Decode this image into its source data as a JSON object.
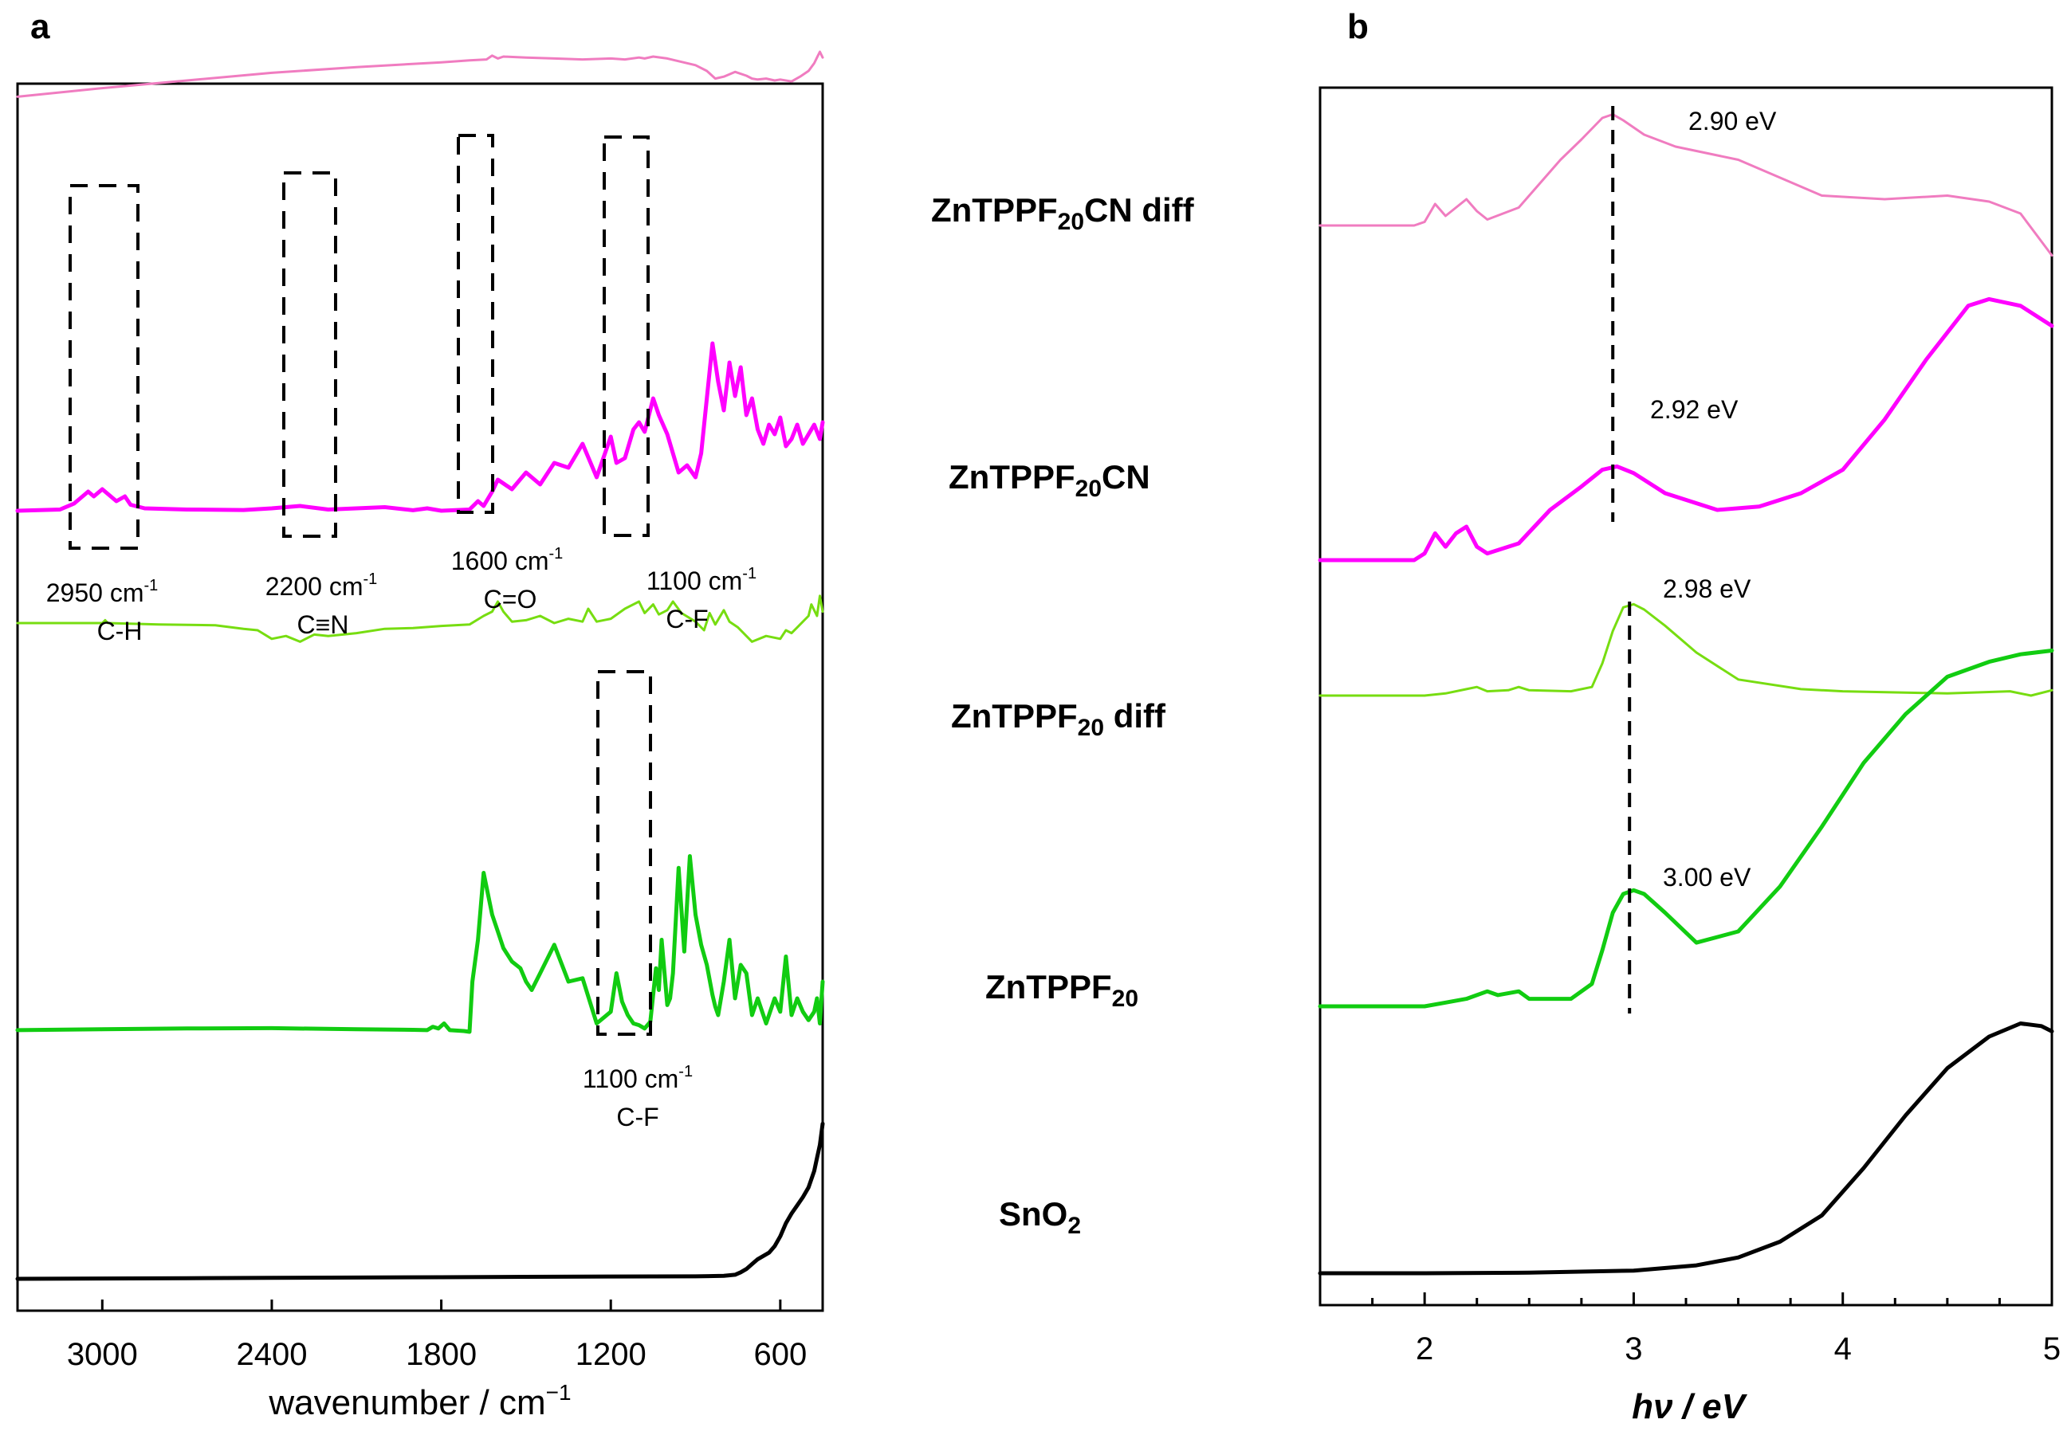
{
  "panels": {
    "a": "a",
    "b": "b"
  },
  "colors": {
    "pink": "#f07cc0",
    "magenta": "#ff00ff",
    "lightgreen": "#77dd11",
    "green": "#11cc11",
    "black": "#000000"
  },
  "chart_data": [
    {
      "type": "line",
      "panel": "a",
      "title": "",
      "xlabel": "wavenumber / cm",
      "xlabel_sup": "−1",
      "ylabel": "",
      "xlim": [
        3300,
        450
      ],
      "xticks": [
        3000,
        2400,
        1800,
        1200,
        600
      ],
      "series": [
        {
          "name": "ZnTPPF20CN diff",
          "color": "#f07cc0",
          "lw": 3,
          "x": [
            3300,
            3000,
            2700,
            2400,
            2100,
            1800,
            1700,
            1640,
            1620,
            1600,
            1580,
            1500,
            1400,
            1300,
            1200,
            1150,
            1100,
            1080,
            1050,
            1000,
            900,
            860,
            830,
            800,
            760,
            720,
            700,
            680,
            650,
            620,
            600,
            560,
            530,
            500,
            480,
            470,
            460,
            450
          ],
          "y": [
            0.765,
            0.81,
            0.85,
            0.89,
            0.92,
            0.945,
            0.955,
            0.96,
            0.98,
            0.965,
            0.975,
            0.97,
            0.965,
            0.96,
            0.965,
            0.96,
            0.97,
            0.965,
            0.975,
            0.965,
            0.93,
            0.9,
            0.86,
            0.87,
            0.895,
            0.875,
            0.86,
            0.855,
            0.86,
            0.85,
            0.855,
            0.845,
            0.87,
            0.9,
            0.94,
            0.97,
            1.0,
            0.97
          ]
        },
        {
          "name": "ZnTPPF20CN",
          "color": "#ff00ff",
          "lw": 5,
          "x": [
            3300,
            3150,
            3100,
            3050,
            3030,
            3000,
            2950,
            2920,
            2900,
            2850,
            2700,
            2500,
            2400,
            2300,
            2200,
            2100,
            2000,
            1900,
            1850,
            1800,
            1700,
            1670,
            1650,
            1620,
            1600,
            1550,
            1500,
            1450,
            1400,
            1350,
            1300,
            1250,
            1200,
            1180,
            1150,
            1120,
            1100,
            1080,
            1050,
            1030,
            1000,
            960,
            930,
            900,
            880,
            860,
            840,
            820,
            800,
            780,
            760,
            740,
            720,
            700,
            680,
            660,
            640,
            620,
            600,
            580,
            560,
            540,
            520,
            500,
            480,
            460,
            450
          ],
          "y": [
            0.08,
            0.085,
            0.11,
            0.16,
            0.14,
            0.17,
            0.12,
            0.14,
            0.105,
            0.09,
            0.085,
            0.083,
            0.09,
            0.1,
            0.085,
            0.09,
            0.095,
            0.082,
            0.09,
            0.08,
            0.085,
            0.12,
            0.1,
            0.16,
            0.21,
            0.17,
            0.24,
            0.19,
            0.28,
            0.26,
            0.36,
            0.22,
            0.39,
            0.28,
            0.3,
            0.42,
            0.45,
            0.41,
            0.55,
            0.48,
            0.4,
            0.24,
            0.27,
            0.22,
            0.32,
            0.55,
            0.78,
            0.62,
            0.5,
            0.7,
            0.56,
            0.68,
            0.48,
            0.55,
            0.42,
            0.36,
            0.44,
            0.4,
            0.47,
            0.35,
            0.38,
            0.44,
            0.36,
            0.4,
            0.44,
            0.38,
            0.45
          ]
        },
        {
          "name": "ZnTPPF20 diff",
          "color": "#77dd11",
          "lw": 3,
          "x": [
            3300,
            3000,
            2990,
            2980,
            2800,
            2600,
            2500,
            2450,
            2400,
            2350,
            2300,
            2250,
            2200,
            2100,
            2000,
            1900,
            1800,
            1700,
            1650,
            1620,
            1600,
            1580,
            1550,
            1500,
            1450,
            1400,
            1350,
            1300,
            1280,
            1250,
            1200,
            1150,
            1100,
            1080,
            1050,
            1030,
            1000,
            980,
            950,
            900,
            870,
            850,
            830,
            800,
            780,
            750,
            700,
            650,
            600,
            580,
            560,
            540,
            520,
            500,
            490,
            470,
            460,
            450
          ],
          "y": [
            0.85,
            0.85,
            0.87,
            0.85,
            0.84,
            0.835,
            0.81,
            0.8,
            0.74,
            0.76,
            0.72,
            0.77,
            0.76,
            0.78,
            0.81,
            0.815,
            0.83,
            0.84,
            0.9,
            0.93,
            1.0,
            0.93,
            0.86,
            0.87,
            0.9,
            0.85,
            0.88,
            0.86,
            0.95,
            0.86,
            0.88,
            0.95,
            1.0,
            0.92,
            0.98,
            0.91,
            0.94,
            1.0,
            0.92,
            0.86,
            0.8,
            0.92,
            0.84,
            0.94,
            0.86,
            0.82,
            0.72,
            0.76,
            0.74,
            0.8,
            0.78,
            0.82,
            0.86,
            0.9,
            0.98,
            0.9,
            1.04,
            0.93
          ]
        },
        {
          "name": "ZnTPPF20",
          "color": "#11cc11",
          "lw": 5,
          "x": [
            3300,
            3000,
            2700,
            2400,
            2100,
            1900,
            1850,
            1830,
            1810,
            1790,
            1770,
            1720,
            1700,
            1690,
            1670,
            1650,
            1620,
            1600,
            1580,
            1550,
            1520,
            1500,
            1480,
            1450,
            1400,
            1350,
            1300,
            1250,
            1200,
            1180,
            1160,
            1140,
            1120,
            1100,
            1080,
            1060,
            1040,
            1030,
            1020,
            1000,
            990,
            980,
            960,
            940,
            920,
            900,
            880,
            860,
            840,
            830,
            820,
            800,
            780,
            760,
            740,
            720,
            700,
            680,
            650,
            620,
            600,
            580,
            560,
            540,
            520,
            500,
            480,
            470,
            460,
            450
          ],
          "y": [
            0.01,
            0.015,
            0.02,
            0.022,
            0.015,
            0.012,
            0.01,
            0.03,
            0.02,
            0.05,
            0.01,
            0.005,
            0.0,
            0.3,
            0.55,
            0.95,
            0.7,
            0.6,
            0.5,
            0.42,
            0.38,
            0.3,
            0.25,
            0.35,
            0.52,
            0.3,
            0.32,
            0.05,
            0.12,
            0.35,
            0.18,
            0.1,
            0.05,
            0.04,
            0.02,
            0.06,
            0.38,
            0.25,
            0.55,
            0.16,
            0.2,
            0.35,
            0.98,
            0.48,
            1.05,
            0.7,
            0.52,
            0.4,
            0.22,
            0.15,
            0.1,
            0.3,
            0.55,
            0.2,
            0.4,
            0.35,
            0.1,
            0.2,
            0.05,
            0.2,
            0.12,
            0.45,
            0.1,
            0.2,
            0.12,
            0.07,
            0.12,
            0.2,
            0.05,
            0.3
          ]
        },
        {
          "name": "SnO2",
          "color": "#000000",
          "lw": 5,
          "x": [
            3300,
            3000,
            2700,
            2400,
            2100,
            1800,
            1500,
            1200,
            900,
            800,
            760,
            740,
            720,
            700,
            680,
            660,
            640,
            620,
            600,
            580,
            560,
            540,
            520,
            500,
            480,
            470,
            460,
            450
          ],
          "y": [
            0.0,
            0.002,
            0.004,
            0.006,
            0.008,
            0.01,
            0.012,
            0.014,
            0.015,
            0.018,
            0.025,
            0.04,
            0.06,
            0.09,
            0.12,
            0.14,
            0.16,
            0.2,
            0.26,
            0.34,
            0.4,
            0.45,
            0.5,
            0.56,
            0.66,
            0.74,
            0.82,
            0.95
          ]
        }
      ],
      "annotations": [
        {
          "wavenumber": "2950 cm",
          "sup": "-1",
          "group": "C-H"
        },
        {
          "wavenumber": "2200 cm",
          "sup": "-1",
          "group": "C≡N"
        },
        {
          "wavenumber": "1600 cm",
          "sup": "-1",
          "group": "C=O"
        },
        {
          "wavenumber": "1100 cm",
          "sup": "-1",
          "group": "C-F"
        },
        {
          "wavenumber": "1100 cm",
          "sup": "-1",
          "group": "C-F"
        }
      ]
    },
    {
      "type": "line",
      "panel": "b",
      "title": "",
      "xlabel": "hν / eV",
      "ylabel": "",
      "xlim": [
        1.5,
        5.0
      ],
      "xticks": [
        2,
        3,
        4,
        5
      ],
      "series": [
        {
          "name": "ZnTPPF20CN diff",
          "color": "#f07cc0",
          "lw": 3,
          "peak_label": "2.90 eV",
          "x": [
            1.5,
            1.95,
            2.0,
            2.05,
            2.1,
            2.15,
            2.2,
            2.25,
            2.3,
            2.45,
            2.55,
            2.65,
            2.75,
            2.85,
            2.9,
            2.95,
            3.05,
            3.2,
            3.5,
            3.9,
            4.2,
            4.5,
            4.7,
            4.85,
            5.0
          ],
          "y": [
            0.0,
            0.0,
            0.03,
            0.18,
            0.08,
            0.15,
            0.22,
            0.12,
            0.05,
            0.15,
            0.35,
            0.55,
            0.72,
            0.9,
            0.93,
            0.88,
            0.76,
            0.66,
            0.55,
            0.25,
            0.22,
            0.25,
            0.2,
            0.1,
            -0.25
          ]
        },
        {
          "name": "ZnTPPF20CN",
          "color": "#ff00ff",
          "lw": 5,
          "peak_label": "2.92 eV",
          "x": [
            1.5,
            1.95,
            2.0,
            2.05,
            2.1,
            2.15,
            2.2,
            2.25,
            2.3,
            2.45,
            2.6,
            2.75,
            2.85,
            2.92,
            3.0,
            3.15,
            3.4,
            3.6,
            3.8,
            4.0,
            4.2,
            4.4,
            4.6,
            4.7,
            4.85,
            5.0
          ],
          "y": [
            0.0,
            0.0,
            0.02,
            0.08,
            0.04,
            0.08,
            0.1,
            0.04,
            0.02,
            0.05,
            0.15,
            0.22,
            0.27,
            0.28,
            0.26,
            0.2,
            0.15,
            0.16,
            0.2,
            0.27,
            0.42,
            0.6,
            0.76,
            0.78,
            0.76,
            0.7
          ]
        },
        {
          "name": "ZnTPPF20 diff",
          "color": "#77dd11",
          "lw": 3,
          "peak_label": "2.98 eV",
          "x": [
            1.5,
            2.0,
            2.1,
            2.2,
            2.25,
            2.3,
            2.4,
            2.45,
            2.5,
            2.7,
            2.8,
            2.85,
            2.9,
            2.95,
            3.0,
            3.05,
            3.15,
            3.3,
            3.5,
            3.8,
            4.0,
            4.5,
            4.8,
            4.9,
            5.0
          ],
          "y": [
            0.0,
            0.0,
            0.02,
            0.06,
            0.08,
            0.04,
            0.05,
            0.08,
            0.05,
            0.04,
            0.08,
            0.3,
            0.6,
            0.82,
            0.85,
            0.8,
            0.65,
            0.4,
            0.15,
            0.06,
            0.04,
            0.02,
            0.04,
            0.0,
            0.05
          ]
        },
        {
          "name": "ZnTPPF20",
          "color": "#11cc11",
          "lw": 5,
          "peak_label": "3.00 eV",
          "x": [
            1.5,
            2.0,
            2.1,
            2.2,
            2.25,
            2.3,
            2.35,
            2.45,
            2.5,
            2.7,
            2.8,
            2.85,
            2.9,
            2.95,
            3.0,
            3.05,
            3.15,
            3.3,
            3.5,
            3.7,
            3.9,
            4.1,
            4.3,
            4.5,
            4.7,
            4.85,
            5.0
          ],
          "y": [
            0.0,
            0.0,
            0.01,
            0.02,
            0.03,
            0.04,
            0.03,
            0.04,
            0.02,
            0.02,
            0.06,
            0.15,
            0.25,
            0.3,
            0.31,
            0.3,
            0.25,
            0.17,
            0.2,
            0.32,
            0.48,
            0.65,
            0.78,
            0.88,
            0.92,
            0.94,
            0.95
          ]
        },
        {
          "name": "SnO2",
          "color": "#000000",
          "lw": 5,
          "x": [
            1.5,
            2.0,
            2.5,
            3.0,
            3.3,
            3.5,
            3.7,
            3.9,
            4.1,
            4.3,
            4.5,
            4.7,
            4.85,
            4.95,
            5.0
          ],
          "y": [
            0.0,
            0.0,
            0.002,
            0.01,
            0.03,
            0.06,
            0.12,
            0.22,
            0.4,
            0.6,
            0.78,
            0.9,
            0.95,
            0.94,
            0.92
          ]
        }
      ],
      "peak_lines": [
        2.9,
        2.98
      ]
    }
  ],
  "legend": [
    {
      "name": "ZnTPPF",
      "sub": "20",
      "suffix": "CN diff",
      "color": "#f07cc0"
    },
    {
      "name": "ZnTPPF",
      "sub": "20",
      "suffix": "CN",
      "color": "#ff00ff"
    },
    {
      "name": "ZnTPPF",
      "sub": "20",
      "suffix": " diff",
      "color": "#77dd11"
    },
    {
      "name": "ZnTPPF",
      "sub": "20",
      "suffix": "",
      "color": "#11cc11"
    },
    {
      "name": "SnO",
      "sub": "2",
      "suffix": "",
      "color": "#000000"
    }
  ]
}
